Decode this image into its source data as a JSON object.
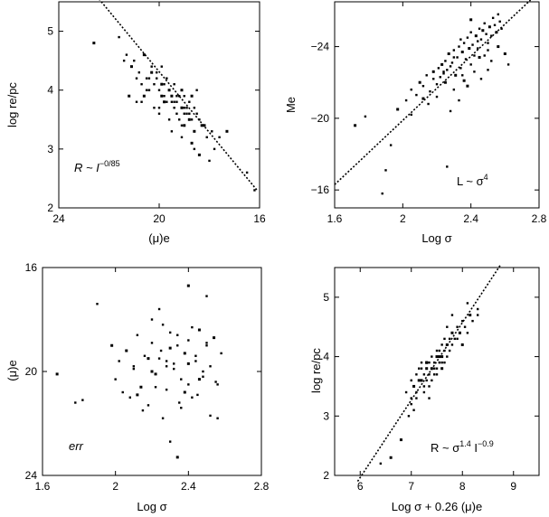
{
  "chart_data": [
    {
      "type": "scatter",
      "id": "a",
      "xlabel": "(μ)e",
      "ylabel": "log re/pc",
      "xlim": [
        24,
        16
      ],
      "ylim": [
        2,
        5.5
      ],
      "xticks": [
        24,
        20,
        16
      ],
      "yticks": [
        2,
        3,
        4,
        5
      ],
      "annotation": "R ~ I^−0/85",
      "annotation_parts": {
        "base": "R ~ ",
        "var": "I",
        "exp": "−0/85"
      },
      "fit": {
        "x": [
          22.4,
          16.1
        ],
        "y": [
          5.55,
          2.3
        ]
      },
      "points": {
        "x": [
          22.6,
          21.6,
          21.4,
          21.3,
          21.1,
          21.0,
          20.9,
          20.8,
          20.6,
          20.7,
          20.5,
          20.4,
          20.3,
          20.2,
          20.1,
          20.0,
          19.9,
          19.8,
          19.7,
          19.6,
          19.5,
          19.4,
          19.3,
          19.2,
          19.1,
          19.0,
          18.9,
          18.8,
          18.7,
          18.6,
          18.5,
          20.9,
          20.6,
          20.4,
          20.2,
          20.0,
          19.8,
          19.6,
          19.4,
          19.2,
          19.0,
          18.8,
          18.6,
          18.4,
          18.2,
          20.5,
          20.3,
          20.1,
          19.9,
          19.7,
          19.5,
          19.3,
          19.1,
          18.9,
          18.7,
          18.5,
          18.3,
          18.1,
          17.9,
          17.6,
          17.3,
          16.5,
          16.2,
          19.8,
          19.6,
          19.4,
          19.2,
          19.0,
          18.8,
          20.0,
          19.5,
          19.1,
          18.7,
          19.3,
          19.0,
          18.6,
          18.4,
          18.0,
          17.8,
          20.7,
          21.2,
          20.4,
          19.9,
          19.1,
          18.6
        ],
        "y": [
          4.8,
          4.9,
          4.5,
          4.6,
          4.4,
          4.5,
          4.2,
          4.3,
          4.6,
          4.1,
          4.2,
          4.0,
          4.3,
          4.1,
          4.2,
          4.0,
          3.9,
          4.1,
          3.8,
          4.0,
          3.9,
          4.1,
          3.8,
          3.9,
          3.7,
          3.9,
          3.6,
          3.8,
          3.9,
          3.7,
          4.0,
          3.8,
          3.9,
          4.0,
          3.7,
          3.6,
          3.8,
          3.5,
          3.7,
          3.5,
          3.4,
          3.6,
          3.3,
          3.5,
          3.4,
          4.0,
          4.4,
          4.3,
          4.1,
          4.2,
          3.8,
          3.9,
          4.0,
          3.7,
          3.5,
          3.6,
          3.4,
          3.2,
          3.3,
          3.2,
          3.3,
          2.6,
          2.3,
          3.9,
          4.0,
          3.8,
          3.9,
          3.6,
          3.5,
          3.7,
          3.3,
          3.2,
          3.1,
          3.6,
          3.7,
          3.0,
          2.9,
          2.8,
          3.0,
          3.8,
          3.9,
          4.2,
          4.4,
          3.4,
          3.3
        ]
      }
    },
    {
      "type": "scatter",
      "id": "b",
      "xlabel": "Log σ",
      "ylabel": "Me",
      "xlim": [
        1.6,
        2.8
      ],
      "ylim": [
        -15,
        -26.5
      ],
      "xticks": [
        1.6,
        2,
        2.4,
        2.8
      ],
      "yticks": [
        -16,
        -20,
        -24
      ],
      "annotation": "L ~ σ^4",
      "annotation_parts": {
        "base": "L ~ σ",
        "exp": "4"
      },
      "fit": {
        "x": [
          1.6,
          2.75
        ],
        "y": [
          -16.3,
          -26.6
        ]
      },
      "points": {
        "x": [
          1.72,
          1.78,
          1.88,
          1.93,
          1.97,
          2.02,
          2.05,
          2.08,
          2.1,
          2.12,
          2.14,
          2.16,
          2.18,
          2.2,
          2.21,
          2.22,
          2.23,
          2.24,
          2.25,
          2.26,
          2.27,
          2.28,
          2.29,
          2.3,
          2.31,
          2.32,
          2.33,
          2.34,
          2.35,
          2.36,
          2.37,
          2.38,
          2.39,
          2.4,
          2.41,
          2.42,
          2.43,
          2.44,
          2.45,
          2.46,
          2.47,
          2.48,
          2.49,
          2.5,
          2.51,
          2.52,
          2.53,
          2.54,
          2.55,
          2.56,
          2.57,
          2.58,
          2.6,
          2.62,
          2.15,
          2.2,
          2.25,
          2.3,
          2.35,
          2.4,
          2.45,
          2.5,
          2.28,
          2.33,
          2.38,
          2.42,
          2.46,
          2.52,
          2.56,
          2.18,
          2.24,
          2.3,
          2.36,
          2.44,
          2.48,
          2.26,
          2.12,
          2.05,
          1.9,
          2.34,
          2.4,
          2.5
        ],
        "y": [
          -19.6,
          -20.1,
          -15.8,
          -18.5,
          -20.5,
          -21.0,
          -21.6,
          -21.3,
          -22.0,
          -21.8,
          -22.4,
          -21.5,
          -22.6,
          -21.9,
          -22.8,
          -22.3,
          -23.0,
          -22.5,
          -23.2,
          -22.7,
          -23.6,
          -22.9,
          -23.1,
          -23.8,
          -22.4,
          -23.4,
          -24.0,
          -22.8,
          -23.7,
          -24.2,
          -23.3,
          -24.5,
          -23.9,
          -24.8,
          -24.1,
          -23.5,
          -24.6,
          -24.3,
          -25.0,
          -24.4,
          -24.9,
          -25.3,
          -24.7,
          -24.2,
          -25.1,
          -24.6,
          -25.6,
          -25.2,
          -24.8,
          -25.8,
          -25.4,
          -25.0,
          -23.6,
          -23.0,
          -20.8,
          -21.2,
          -22.0,
          -21.6,
          -22.4,
          -23.0,
          -23.4,
          -23.8,
          -20.4,
          -21.0,
          -21.8,
          -22.6,
          -22.2,
          -23.2,
          -24.0,
          -22.2,
          -22.6,
          -23.4,
          -22.1,
          -23.9,
          -23.5,
          -17.3,
          -21.1,
          -20.2,
          -17.1,
          -24.4,
          -25.5,
          -22.7
        ]
      }
    },
    {
      "type": "scatter",
      "id": "c",
      "xlabel": "Log σ",
      "ylabel": "(μ)e",
      "xlim": [
        1.6,
        2.8
      ],
      "ylim": [
        24,
        16
      ],
      "xticks": [
        1.6,
        2,
        2.4,
        2.8
      ],
      "yticks": [
        16,
        20,
        24
      ],
      "annotation": "err",
      "points": {
        "x": [
          1.68,
          1.78,
          1.82,
          1.9,
          1.98,
          2.0,
          2.02,
          2.04,
          2.06,
          2.08,
          2.1,
          2.12,
          2.14,
          2.16,
          2.18,
          2.2,
          2.22,
          2.24,
          2.26,
          2.28,
          2.3,
          2.32,
          2.34,
          2.36,
          2.38,
          2.4,
          2.42,
          2.44,
          2.46,
          2.48,
          2.5,
          2.52,
          2.54,
          2.56,
          2.58,
          2.15,
          2.2,
          2.25,
          2.3,
          2.35,
          2.4,
          2.45,
          2.5,
          2.55,
          2.18,
          2.22,
          2.28,
          2.34,
          2.38,
          2.44,
          2.48,
          2.52,
          2.12,
          2.26,
          2.32,
          2.42,
          2.46,
          2.2,
          2.36,
          2.3,
          2.4,
          2.24,
          2.5,
          2.1,
          2.34,
          2.4,
          2.28,
          2.56
        ],
        "y": [
          20.1,
          21.2,
          21.1,
          17.4,
          19.0,
          20.3,
          19.6,
          20.8,
          19.2,
          21.0,
          19.8,
          18.6,
          20.6,
          19.4,
          21.3,
          18.9,
          20.1,
          19.5,
          18.2,
          20.7,
          19.1,
          19.9,
          18.6,
          20.3,
          19.3,
          18.8,
          21.0,
          19.6,
          18.4,
          20.2,
          19.0,
          19.8,
          18.7,
          20.5,
          19.3,
          21.5,
          20.0,
          19.2,
          18.5,
          21.2,
          19.7,
          20.9,
          18.9,
          20.4,
          19.5,
          20.6,
          19.8,
          19.0,
          20.8,
          19.4,
          20.0,
          21.7,
          20.9,
          21.8,
          19.7,
          18.3,
          20.3,
          18.0,
          21.4,
          22.7,
          16.7,
          17.6,
          17.1,
          19.9,
          23.3,
          20.5,
          19.6,
          21.8
        ]
      }
    },
    {
      "type": "scatter",
      "id": "d",
      "xlabel": "Log σ + 0.26 (μ)e",
      "ylabel": "log re/pc",
      "xlim": [
        5.5,
        9.5
      ],
      "ylim": [
        2,
        5.5
      ],
      "xticks": [
        6,
        7,
        8,
        9
      ],
      "yticks": [
        2,
        3,
        4,
        5
      ],
      "annotation": "R ~ σ^1.4 I^−0.9",
      "annotation_parts": {
        "base1": "R ~ σ",
        "exp1": "1.4",
        "base2": " I",
        "exp2": "−0.9"
      },
      "fit": {
        "x": [
          5.95,
          8.75
        ],
        "y": [
          1.9,
          5.55
        ]
      },
      "points": {
        "x": [
          6.6,
          6.9,
          7.0,
          7.0,
          7.05,
          7.1,
          7.1,
          7.15,
          7.2,
          7.2,
          7.25,
          7.25,
          7.3,
          7.3,
          7.35,
          7.35,
          7.4,
          7.4,
          7.45,
          7.45,
          7.5,
          7.5,
          7.55,
          7.55,
          7.6,
          7.6,
          7.65,
          7.65,
          7.7,
          7.7,
          7.75,
          7.75,
          7.8,
          7.8,
          7.85,
          7.9,
          7.95,
          8.0,
          8.05,
          8.1,
          8.15,
          8.2,
          8.3,
          7.2,
          7.3,
          7.4,
          7.5,
          7.6,
          7.15,
          7.25,
          7.35,
          7.45,
          7.55,
          7.65,
          7.0,
          7.1,
          7.3,
          7.5,
          7.7,
          7.9,
          8.0,
          6.95,
          7.05,
          7.35,
          7.6,
          7.8,
          8.1,
          6.4,
          6.8,
          8.3
        ],
        "y": [
          2.3,
          3.4,
          3.3,
          3.6,
          3.5,
          3.7,
          3.4,
          3.8,
          3.6,
          3.9,
          3.7,
          3.5,
          3.8,
          3.6,
          3.9,
          3.7,
          3.8,
          4.0,
          3.9,
          3.7,
          4.0,
          3.8,
          4.1,
          3.9,
          4.0,
          4.2,
          4.1,
          3.9,
          4.2,
          4.0,
          4.3,
          4.1,
          4.4,
          4.2,
          4.3,
          4.5,
          4.4,
          4.6,
          4.5,
          4.4,
          4.7,
          4.6,
          4.8,
          3.8,
          3.9,
          3.6,
          3.7,
          3.9,
          3.6,
          3.4,
          3.5,
          3.8,
          4.0,
          4.3,
          3.2,
          3.3,
          3.9,
          4.1,
          4.5,
          4.3,
          4.2,
          3.0,
          3.1,
          3.3,
          3.8,
          4.7,
          4.9,
          2.2,
          2.6,
          4.7
        ]
      }
    }
  ]
}
